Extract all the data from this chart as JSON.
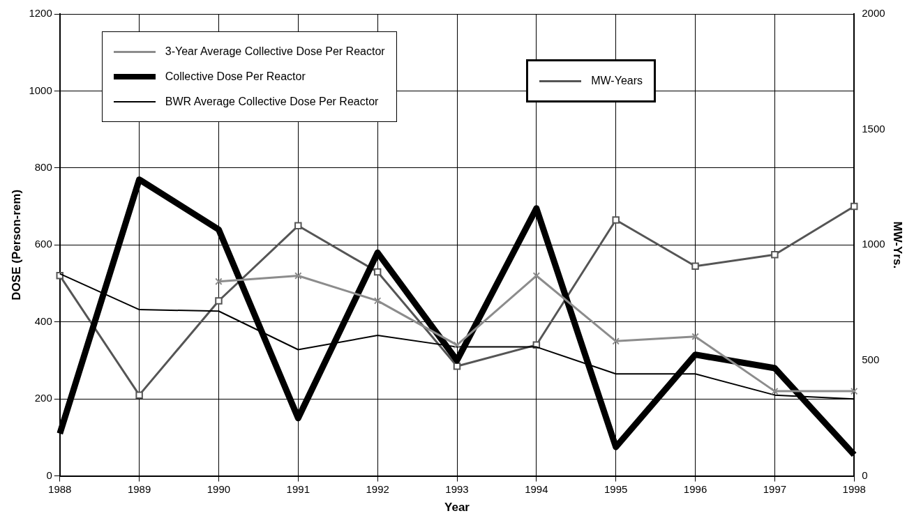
{
  "chart_data": {
    "type": "line",
    "xlabel": "Year",
    "ylabel": "DOSE (Person-rem)",
    "y2label": "MW-Yrs.",
    "categories": [
      "1988",
      "1989",
      "1990",
      "1991",
      "1992",
      "1993",
      "1994",
      "1995",
      "1996",
      "1997",
      "1998"
    ],
    "ylim": [
      0,
      1200
    ],
    "yticks": [
      0,
      200,
      400,
      600,
      800,
      1000,
      1200
    ],
    "y2lim": [
      0,
      2000
    ],
    "y2ticks": [
      0,
      500,
      1000,
      1500,
      2000
    ],
    "grid": true,
    "legend": "top left",
    "marker": "none",
    "line_style": "solid",
    "series": [
      {
        "name": "3-Year Average Collective Dose Per Reactor",
        "color": "#8c8c8c",
        "marker": "cross",
        "values": [
          null,
          null,
          505,
          520,
          455,
          340,
          520,
          350,
          362,
          220,
          220
        ]
      },
      {
        "name": "Collective Dose Per Reactor",
        "color": "#000000",
        "values": [
          110,
          770,
          640,
          150,
          580,
          300,
          695,
          75,
          315,
          280,
          55
        ]
      },
      {
        "name": "BWR Average Collective Dose Per Reactor",
        "color": "#000000",
        "values": [
          525,
          432,
          428,
          328,
          365,
          335,
          335,
          265,
          265,
          210,
          200
        ]
      },
      {
        "name": "MW-Years",
        "color": "#555555",
        "marker": "square",
        "axis": "y2",
        "values": [
          867,
          350,
          758,
          1083,
          883,
          475,
          567,
          1108,
          908,
          958,
          1167
        ]
      }
    ]
  }
}
